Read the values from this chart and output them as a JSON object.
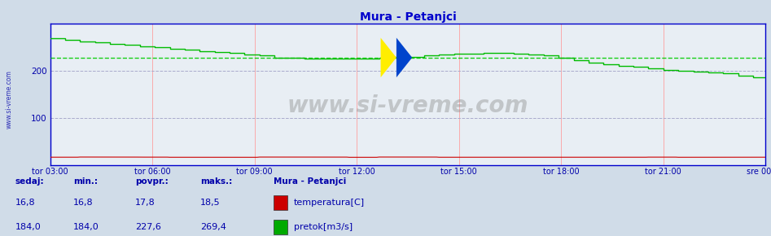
{
  "title": "Mura - Petanjci",
  "title_color": "#0000cc",
  "bg_color": "#d0dce8",
  "plot_bg_color": "#e8eef4",
  "ylim": [
    0,
    300
  ],
  "yticks": [
    100,
    200
  ],
  "grid_color_h": "#aaaacc",
  "grid_color_v": "#ff9999",
  "x_labels": [
    "tor 03:00",
    "tor 06:00",
    "tor 09:00",
    "tor 12:00",
    "tor 15:00",
    "tor 18:00",
    "tor 21:00",
    "sre 00:00"
  ],
  "avg_pretok": 227.6,
  "watermark": "www.si-vreme.com",
  "legend_title": "Mura - Petanjci",
  "legend_items": [
    {
      "label": "temperatura[C]",
      "color": "#cc0000"
    },
    {
      "label": "pretok[m3/s]",
      "color": "#00aa00"
    }
  ],
  "table_headers": [
    "sedaj:",
    "min.:",
    "povpr.:",
    "maks.:"
  ],
  "table_rows": [
    [
      "16,8",
      "16,8",
      "17,8",
      "18,5"
    ],
    [
      "184,0",
      "184,0",
      "227,6",
      "269,4"
    ]
  ],
  "left_label": "www.si-vreme.com",
  "temperatura_color": "#cc0000",
  "pretok_color": "#00bb00",
  "avg_line_color": "#00cc00",
  "axis_color": "#0000cc",
  "tick_color": "#0000aa",
  "n_points": 288
}
